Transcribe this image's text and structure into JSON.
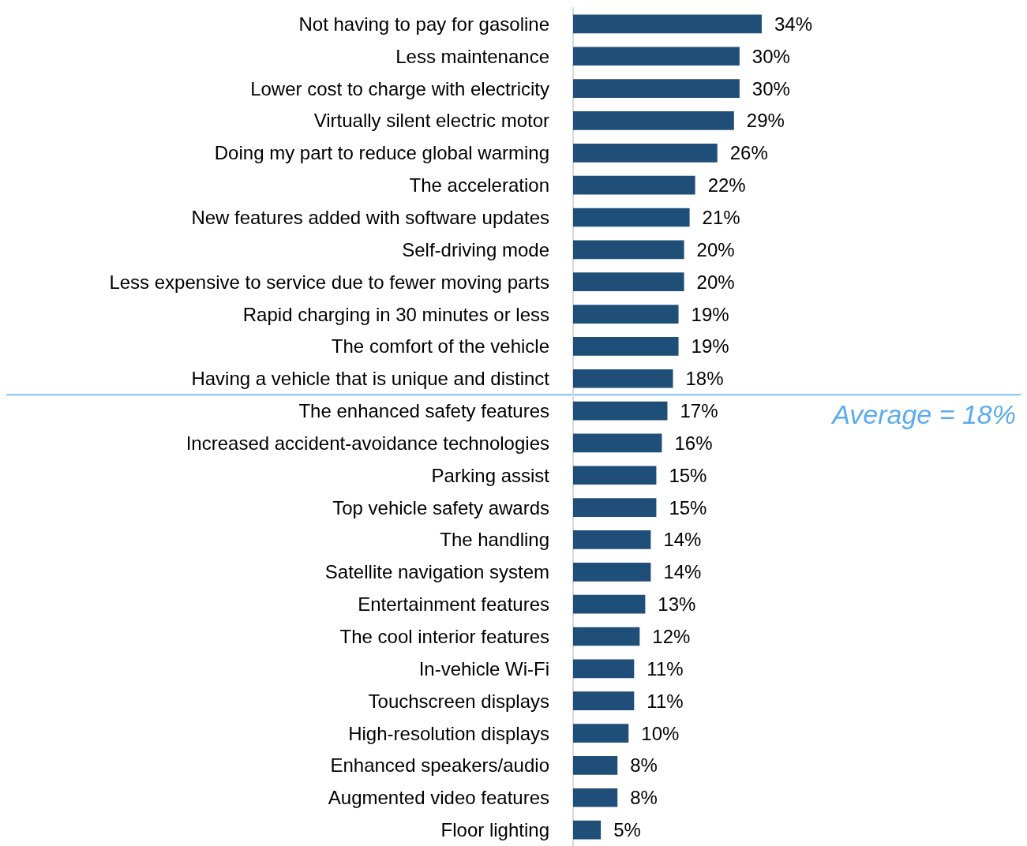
{
  "chart_data": {
    "type": "bar",
    "orientation": "horizontal",
    "color": "#1f4e79",
    "categories": [
      "Not having to pay for gasoline",
      "Less maintenance",
      "Lower cost to charge with electricity",
      "Virtually silent electric motor",
      "Doing my part to reduce global warming",
      "The acceleration",
      "New features added with software updates",
      "Self-driving mode",
      "Less expensive to service due to fewer moving parts",
      "Rapid charging in 30 minutes or less",
      "The comfort of the vehicle",
      "Having a vehicle that is unique and distinct",
      "The enhanced safety features",
      "Increased accident-avoidance technologies",
      "Parking assist",
      "Top vehicle safety awards",
      "The handling",
      "Satellite navigation system",
      "Entertainment features",
      "The cool interior features",
      "In-vehicle Wi-Fi",
      "Touchscreen displays",
      "High-resolution displays",
      "Enhanced speakers/audio",
      "Augmented video features",
      "Floor lighting"
    ],
    "values": [
      34,
      30,
      30,
      29,
      26,
      22,
      21,
      20,
      20,
      19,
      19,
      18,
      17,
      16,
      15,
      15,
      14,
      14,
      13,
      12,
      11,
      11,
      10,
      8,
      8,
      5
    ],
    "value_labels": [
      "34%",
      "30%",
      "30%",
      "29%",
      "26%",
      "22%",
      "21%",
      "20%",
      "20%",
      "19%",
      "19%",
      "18%",
      "17%",
      "16%",
      "15%",
      "15%",
      "14%",
      "14%",
      "13%",
      "12%",
      "11%",
      "11%",
      "10%",
      "8%",
      "8%",
      "5%"
    ],
    "ref_lines": [
      {
        "axis": "y",
        "value": "Having a vehicle that is unique and distinct",
        "label": "Average = 18%",
        "color": "#5aabf0"
      }
    ]
  }
}
